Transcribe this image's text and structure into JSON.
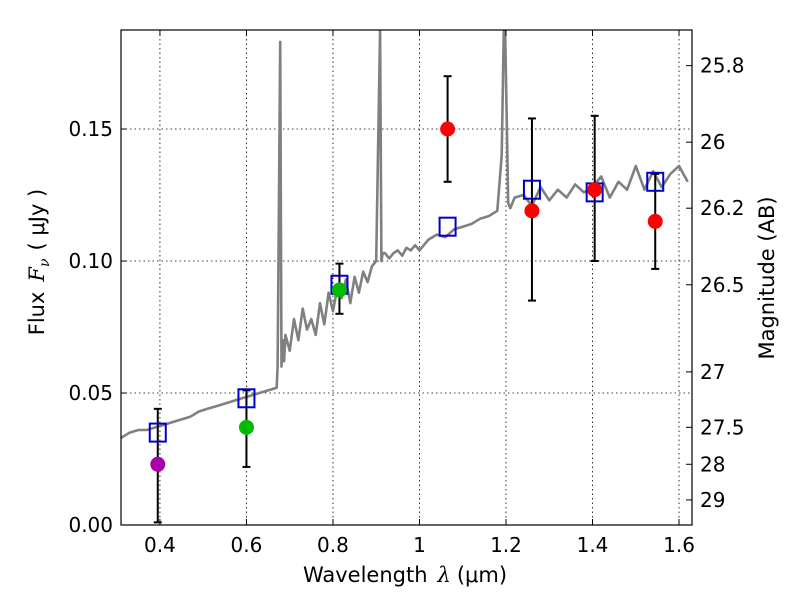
{
  "chart_data": {
    "type": "scatter",
    "xlabel_prefix": "Wavelength",
    "xlabel_symbol": "λ",
    "xlabel_unit": "(μm)",
    "ylabel_prefix": "Flux",
    "ylabel_symbol": "F",
    "ylabel_subscript": "ν",
    "ylabel_unit": "( μJy )",
    "y2label": "Magnitude (AB)",
    "xlim": [
      0.31,
      1.63
    ],
    "ylim": [
      0.0,
      0.1875
    ],
    "grid": "dotted",
    "x_ticks": [
      {
        "value": 0.4,
        "label": "0.4"
      },
      {
        "value": 0.6,
        "label": "0.6"
      },
      {
        "value": 0.8,
        "label": "0.8"
      },
      {
        "value": 1.0,
        "label": "1"
      },
      {
        "value": 1.2,
        "label": "1.2"
      },
      {
        "value": 1.4,
        "label": "1.4"
      },
      {
        "value": 1.6,
        "label": "1.6"
      }
    ],
    "y_ticks": [
      {
        "value": 0.0,
        "label": "0.00"
      },
      {
        "value": 0.05,
        "label": "0.05"
      },
      {
        "value": 0.1,
        "label": "0.10"
      },
      {
        "value": 0.15,
        "label": "0.15"
      }
    ],
    "mag_ticks": [
      {
        "flux": 0.174,
        "label": "25.8"
      },
      {
        "flux": 0.145,
        "label": "26"
      },
      {
        "flux": 0.12,
        "label": "26.2"
      },
      {
        "flux": 0.091,
        "label": "26.5"
      },
      {
        "flux": 0.058,
        "label": "27"
      },
      {
        "flux": 0.037,
        "label": "27.5"
      },
      {
        "flux": 0.023,
        "label": "28"
      },
      {
        "flux": 0.0095,
        "label": "29"
      }
    ],
    "measurements": [
      {
        "x": 0.395,
        "y": 0.023,
        "yerr_low": 0.001,
        "yerr_high": 0.044,
        "color": "#aa00aa"
      },
      {
        "x": 0.6,
        "y": 0.037,
        "yerr_low": 0.022,
        "yerr_high": 0.051,
        "color": "#00bb00"
      },
      {
        "x": 0.815,
        "y": 0.089,
        "yerr_low": 0.08,
        "yerr_high": 0.099,
        "color": "#00bb00"
      },
      {
        "x": 1.065,
        "y": 0.15,
        "yerr_low": 0.13,
        "yerr_high": 0.17,
        "color": "#ff0000"
      },
      {
        "x": 1.26,
        "y": 0.119,
        "yerr_low": 0.085,
        "yerr_high": 0.154,
        "color": "#ff0000"
      },
      {
        "x": 1.405,
        "y": 0.127,
        "yerr_low": 0.1,
        "yerr_high": 0.155,
        "color": "#ff0000"
      },
      {
        "x": 1.545,
        "y": 0.115,
        "yerr_low": 0.097,
        "yerr_high": 0.133,
        "color": "#ff0000"
      }
    ],
    "model_photometry": [
      {
        "x": 0.395,
        "y": 0.035
      },
      {
        "x": 0.6,
        "y": 0.048
      },
      {
        "x": 0.815,
        "y": 0.091
      },
      {
        "x": 1.065,
        "y": 0.113
      },
      {
        "x": 1.26,
        "y": 0.127
      },
      {
        "x": 1.405,
        "y": 0.126
      },
      {
        "x": 1.545,
        "y": 0.13
      }
    ],
    "model_color": "#0000cc",
    "spectrum_color": "#808080",
    "spectrum": {
      "x": [
        0.31,
        0.33,
        0.35,
        0.37,
        0.39,
        0.41,
        0.43,
        0.45,
        0.47,
        0.49,
        0.51,
        0.53,
        0.55,
        0.57,
        0.59,
        0.61,
        0.63,
        0.65,
        0.67,
        0.672,
        0.675,
        0.678,
        0.681,
        0.684,
        0.687,
        0.69,
        0.7,
        0.71,
        0.72,
        0.73,
        0.74,
        0.75,
        0.76,
        0.77,
        0.78,
        0.79,
        0.8,
        0.81,
        0.82,
        0.83,
        0.84,
        0.85,
        0.86,
        0.87,
        0.88,
        0.89,
        0.9,
        0.905,
        0.909,
        0.912,
        0.915,
        0.92,
        0.93,
        0.94,
        0.95,
        0.96,
        0.97,
        0.98,
        0.99,
        1.0,
        1.02,
        1.04,
        1.06,
        1.08,
        1.1,
        1.12,
        1.14,
        1.16,
        1.18,
        1.19,
        1.195,
        1.198,
        1.202,
        1.205,
        1.21,
        1.22,
        1.24,
        1.26,
        1.28,
        1.3,
        1.32,
        1.34,
        1.36,
        1.38,
        1.4,
        1.42,
        1.44,
        1.46,
        1.48,
        1.5,
        1.52,
        1.54,
        1.56,
        1.58,
        1.6,
        1.62
      ],
      "y": [
        0.033,
        0.035,
        0.036,
        0.036,
        0.037,
        0.038,
        0.039,
        0.04,
        0.041,
        0.043,
        0.044,
        0.045,
        0.046,
        0.047,
        0.048,
        0.049,
        0.05,
        0.051,
        0.052,
        0.06,
        0.12,
        0.183,
        0.06,
        0.07,
        0.062,
        0.072,
        0.066,
        0.078,
        0.07,
        0.082,
        0.074,
        0.078,
        0.072,
        0.084,
        0.076,
        0.088,
        0.081,
        0.09,
        0.086,
        0.093,
        0.084,
        0.094,
        0.088,
        0.096,
        0.092,
        0.098,
        0.1,
        0.15,
        0.1875,
        0.1,
        0.103,
        0.103,
        0.101,
        0.103,
        0.104,
        0.102,
        0.105,
        0.104,
        0.106,
        0.104,
        0.108,
        0.11,
        0.109,
        0.112,
        0.113,
        0.114,
        0.116,
        0.117,
        0.119,
        0.14,
        0.1875,
        0.1875,
        0.15,
        0.122,
        0.12,
        0.124,
        0.125,
        0.121,
        0.128,
        0.123,
        0.127,
        0.124,
        0.129,
        0.126,
        0.128,
        0.132,
        0.124,
        0.13,
        0.127,
        0.136,
        0.127,
        0.134,
        0.128,
        0.133,
        0.136,
        0.13
      ]
    }
  }
}
